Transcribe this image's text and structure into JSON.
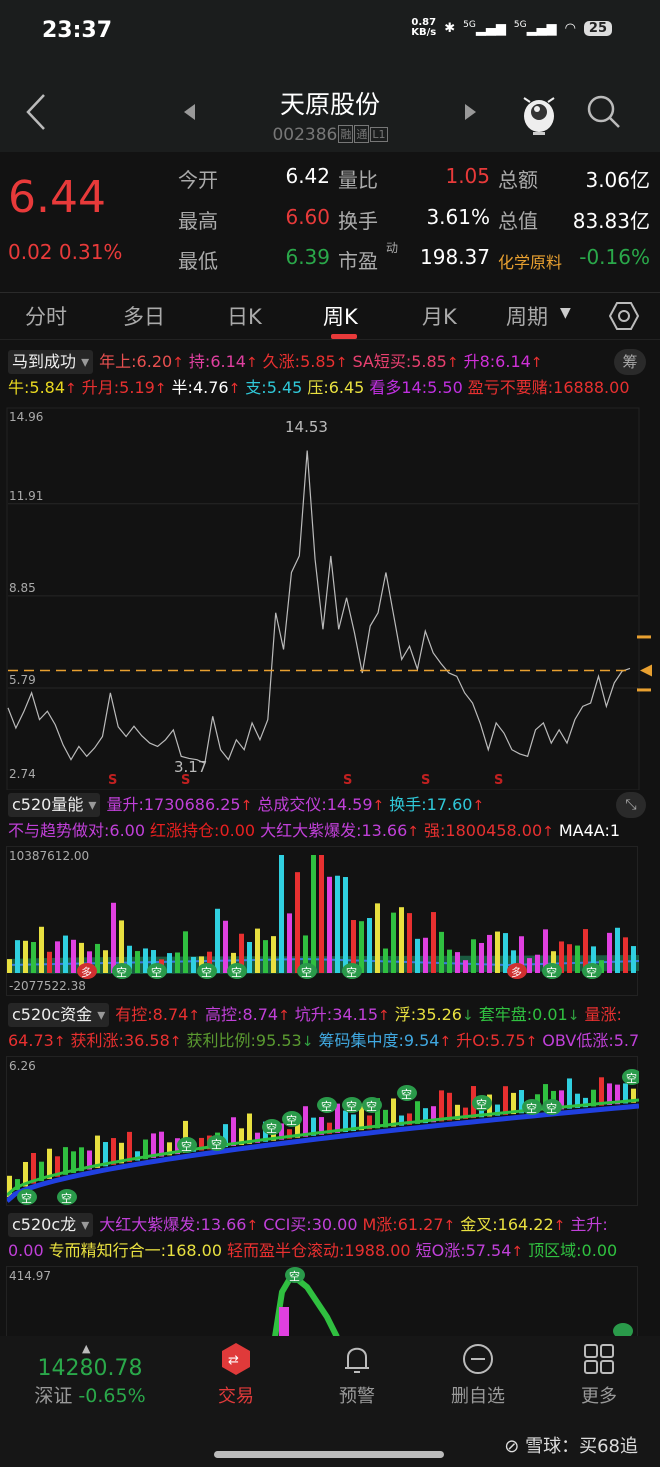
{
  "status": {
    "time": "23:37",
    "net_speed": "0.87",
    "net_unit": "KB/s",
    "signal1": "5G",
    "signal2": "5G",
    "battery": "25"
  },
  "header": {
    "title": "天原股份",
    "code": "002386",
    "tags": [
      "融",
      "通",
      "L1"
    ],
    "icons": [
      "back-icon",
      "prev-stock-icon",
      "next-stock-icon",
      "mascot-icon",
      "search-icon"
    ]
  },
  "quote": {
    "price": "6.44",
    "change": "0.02",
    "change_pct": "0.31%",
    "fields": [
      {
        "label": "今开",
        "value": "6.42",
        "color": "#ffffff"
      },
      {
        "label": "量比",
        "value": "1.05",
        "color": "#e83a3a"
      },
      {
        "label": "总额",
        "value": "3.06亿",
        "color": "#ffffff"
      },
      {
        "label": "最高",
        "value": "6.60",
        "color": "#e83a3a"
      },
      {
        "label": "换手",
        "value": "3.61%",
        "color": "#ffffff"
      },
      {
        "label": "总值",
        "value": "83.83亿",
        "color": "#ffffff"
      },
      {
        "label": "最低",
        "value": "6.39",
        "color": "#2aa84a"
      },
      {
        "label": "市盈",
        "sup": "动",
        "value": "198.37",
        "color": "#ffffff"
      },
      {
        "label": "化学原料",
        "value": "-0.16%",
        "color": "#2aa84a"
      }
    ]
  },
  "tabs": [
    {
      "label": "分时"
    },
    {
      "label": "多日"
    },
    {
      "label": "日K"
    },
    {
      "label": "周K",
      "active": true
    },
    {
      "label": "月K"
    },
    {
      "label": "周期"
    }
  ],
  "indicators": [
    {
      "name": "马到成功",
      "button": "筹",
      "rows": [
        [
          {
            "l": "年上:",
            "v": "6.20",
            "c": "#e85050",
            "a": "↑"
          },
          {
            "l": "持:",
            "v": "6.14",
            "c": "#e040a0",
            "a": "↑"
          },
          {
            "l": "久涨:",
            "v": "5.85",
            "c": "#e83030",
            "a": "↑"
          },
          {
            "l": "SA短买:",
            "v": "5.85",
            "c": "#e84070",
            "a": "↑"
          },
          {
            "l": "升8:",
            "v": "6.14",
            "c": "#d030d8",
            "a": "↑"
          }
        ],
        [
          {
            "l": "牛:",
            "v": "5.84",
            "c": "#e8d820",
            "a": "↑"
          },
          {
            "l": "升月:",
            "v": "5.19",
            "c": "#e83030",
            "a": "↑"
          },
          {
            "l": "半:",
            "v": "4.76",
            "c": "#ffffff",
            "a": "↑"
          },
          {
            "l": "支:",
            "v": "5.45",
            "c": "#30c8d8",
            "a": ""
          },
          {
            "l": "压:",
            "v": "6.45",
            "c": "#e8e040",
            "a": ""
          },
          {
            "l": "看多14:",
            "v": "5.50",
            "c": "#c030e0",
            "a": ""
          },
          {
            "l": "盈亏不要赌:",
            "v": "16888.00",
            "c": "#e83030",
            "a": ""
          }
        ]
      ]
    },
    {
      "name": "c520量能",
      "button": "expand-icon",
      "rows": [
        [
          {
            "l": "量升:",
            "v": "1730686.25",
            "c": "#c040d8",
            "a": "↑"
          },
          {
            "l": "总成交仪:",
            "v": "14.59",
            "c": "#c040d8",
            "a": "↑"
          },
          {
            "l": "换手:",
            "v": "17.60",
            "c": "#30c8d8",
            "a": "↑"
          }
        ],
        [
          {
            "l": "不与趋势做对:",
            "v": "6.00",
            "c": "#c040d8",
            "a": ""
          },
          {
            "l": "红涨持仓:",
            "v": "0.00",
            "c": "#e82020",
            "a": ""
          },
          {
            "l": "大红大紫爆发:",
            "v": "13.66",
            "c": "#c040d8",
            "a": "↑"
          },
          {
            "l": "强:",
            "v": "1800458.00",
            "c": "#e83030",
            "a": "↑"
          },
          {
            "l": "MA4A:",
            "v": "1",
            "c": "#ffffff",
            "a": ""
          }
        ]
      ]
    },
    {
      "name": "c520c资金",
      "rows": [
        [
          {
            "l": "有控:",
            "v": "8.74",
            "c": "#e83030",
            "a": "↑"
          },
          {
            "l": "高控:",
            "v": "8.74",
            "c": "#c040d8",
            "a": "↑"
          },
          {
            "l": "坑升:",
            "v": "34.15",
            "c": "#c040d8",
            "a": "↑"
          },
          {
            "l": "浮:",
            "v": "35.26",
            "c": "#e8e040",
            "a": "↓"
          },
          {
            "l": "套牢盘:",
            "v": "0.01",
            "c": "#30c040",
            "a": "↓"
          },
          {
            "l": "量涨:",
            "v": "",
            "c": "#e83030",
            "a": ""
          }
        ],
        [
          {
            "l": "",
            "v": "64.73",
            "c": "#e83030",
            "a": "↑"
          },
          {
            "l": "获利涨:",
            "v": "36.58",
            "c": "#e83030",
            "a": "↑"
          },
          {
            "l": "获利比例:",
            "v": "95.53",
            "c": "#5a9a30",
            "a": "↓"
          },
          {
            "l": "筹码集中度:",
            "v": "9.54",
            "c": "#40a8e0",
            "a": "↑"
          },
          {
            "l": "升O:",
            "v": "5.75",
            "c": "#e83030",
            "a": "↑"
          },
          {
            "l": "OBV低涨:",
            "v": "5.7",
            "c": "#c040d8",
            "a": ""
          }
        ]
      ]
    },
    {
      "name": "c520c龙",
      "rows": [
        [
          {
            "l": "大红大紫爆发:",
            "v": "13.66",
            "c": "#c040d8",
            "a": "↑"
          },
          {
            "l": "CCI买:",
            "v": "30.00",
            "c": "#c040d8",
            "a": ""
          },
          {
            "l": "M涨:",
            "v": "61.27",
            "c": "#e83030",
            "a": "↑"
          },
          {
            "l": "金叉:",
            "v": "164.22",
            "c": "#e8e040",
            "a": "↑"
          },
          {
            "l": "主升:",
            "v": "",
            "c": "#c040d8",
            "a": ""
          }
        ],
        [
          {
            "l": "",
            "v": "0.00",
            "c": "#c040d8",
            "a": ""
          },
          {
            "l": "专而精知行合一:",
            "v": "168.00",
            "c": "#e8e040",
            "a": ""
          },
          {
            "l": "轻而盈半仓滚动:",
            "v": "1988.00",
            "c": "#e83030",
            "a": ""
          },
          {
            "l": "短O涨:",
            "v": "57.54",
            "c": "#c040d8",
            "a": "↑"
          },
          {
            "l": "顶区域:",
            "v": "0.00",
            "c": "#30c040",
            "a": ""
          }
        ]
      ]
    }
  ],
  "chart_data": {
    "type": "line",
    "ylim": [
      2.74,
      14.96
    ],
    "y_ticks": [
      "14.96",
      "11.91",
      "8.85",
      "5.79",
      "2.74"
    ],
    "high_label": "14.53",
    "low_label": "3.17",
    "current_line": 6.44,
    "signal_label": "S",
    "signal_count": 5,
    "line_color": "#bbbbbb",
    "ref_line_color": "#e8a030",
    "values": [
      5.13,
      4.46,
      5.0,
      5.63,
      4.74,
      5.02,
      4.57,
      3.9,
      3.41,
      3.85,
      3.52,
      3.8,
      4.18,
      5.63,
      4.5,
      4.18,
      4.52,
      4.2,
      3.96,
      3.85,
      4.07,
      4.4,
      3.52,
      3.45,
      3.41,
      3.29,
      4.85,
      3.74,
      3.41,
      4.07,
      3.74,
      4.63,
      4.07,
      4.74,
      8.29,
      7.07,
      9.63,
      10.18,
      13.68,
      10.07,
      7.74,
      10.18,
      7.74,
      8.79,
      7.63,
      6.29,
      7.85,
      8.29,
      9.63,
      8.18,
      6.74,
      7.18,
      6.41,
      7.68,
      6.96,
      6.6,
      6.29,
      6.18,
      5.63,
      5.29,
      4.6,
      3.74,
      4.63,
      4.29,
      3.74,
      3.6,
      3.52,
      4.4,
      4.63,
      3.96,
      4.4,
      3.96,
      4.74,
      5.18,
      5.29,
      6.18,
      5.18,
      5.96,
      6.35,
      6.44
    ]
  },
  "volume_panel": {
    "max": "10387612.00",
    "min": "-2077522.38",
    "bubbles": [
      "空",
      "多"
    ]
  },
  "fund_panel": {
    "max": "6.26",
    "bubble": "空"
  },
  "dragon_panel": {
    "max": "414.97",
    "bubble": "空"
  },
  "bottom": {
    "index_value": "14280.78",
    "index_name": "深证",
    "index_change": "-0.65%",
    "nav": [
      {
        "label": "交易",
        "icon": "trade-icon",
        "active": true
      },
      {
        "label": "预警",
        "icon": "bell-icon"
      },
      {
        "label": "删自选",
        "icon": "remove-watchlist-icon"
      },
      {
        "label": "更多",
        "icon": "more-grid-icon"
      }
    ],
    "watermark": "雪球：买68追"
  }
}
